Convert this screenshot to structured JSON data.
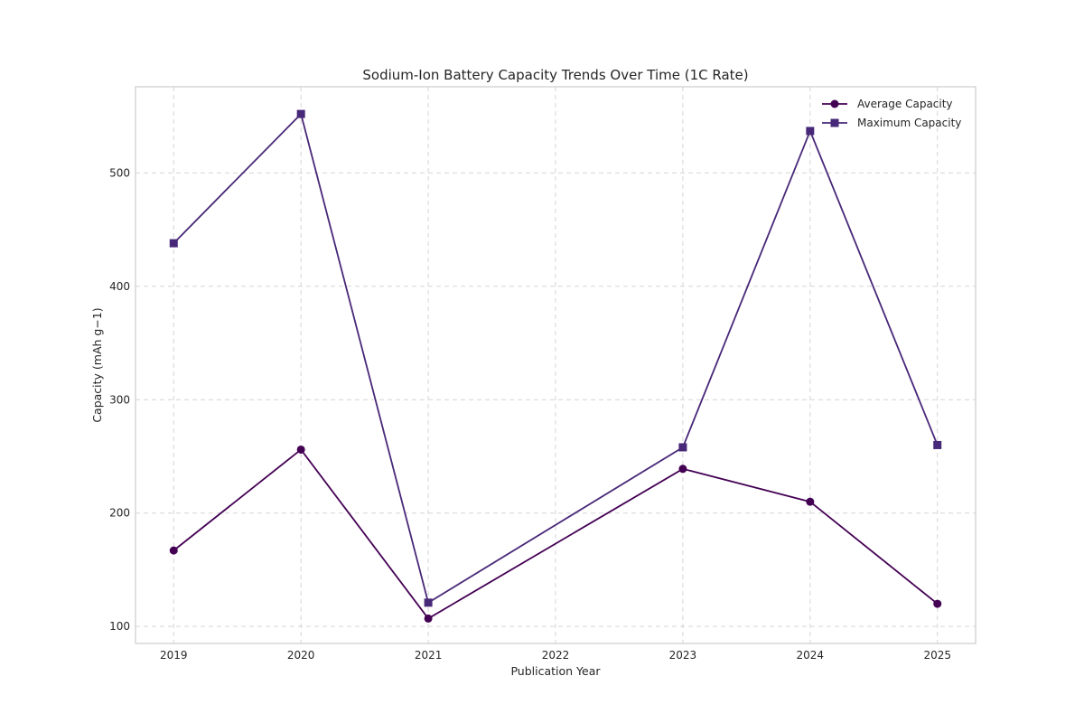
{
  "chart_data": {
    "type": "line",
    "title": "Sodium-Ion Battery Capacity Trends Over Time (1C Rate)",
    "xlabel": "Publication Year",
    "ylabel": "Capacity (mAh g−1)",
    "xlim": [
      2018.7,
      2025.3
    ],
    "ylim": [
      85,
      576
    ],
    "x_ticks": [
      2019,
      2020,
      2021,
      2022,
      2023,
      2024,
      2025
    ],
    "y_ticks": [
      100,
      200,
      300,
      400,
      500
    ],
    "grid": true,
    "legend_position": "top-right",
    "series": [
      {
        "name": "Average Capacity",
        "marker": "circle",
        "color": "#440154",
        "x": [
          2019,
          2020,
          2021,
          2023,
          2024,
          2025
        ],
        "y": [
          167,
          256,
          107,
          239,
          210,
          120
        ]
      },
      {
        "name": "Maximum Capacity",
        "marker": "square",
        "color": "#482878",
        "x": [
          2019,
          2020,
          2021,
          2023,
          2024,
          2025
        ],
        "y": [
          438,
          552,
          121,
          258,
          537,
          260
        ]
      }
    ]
  }
}
